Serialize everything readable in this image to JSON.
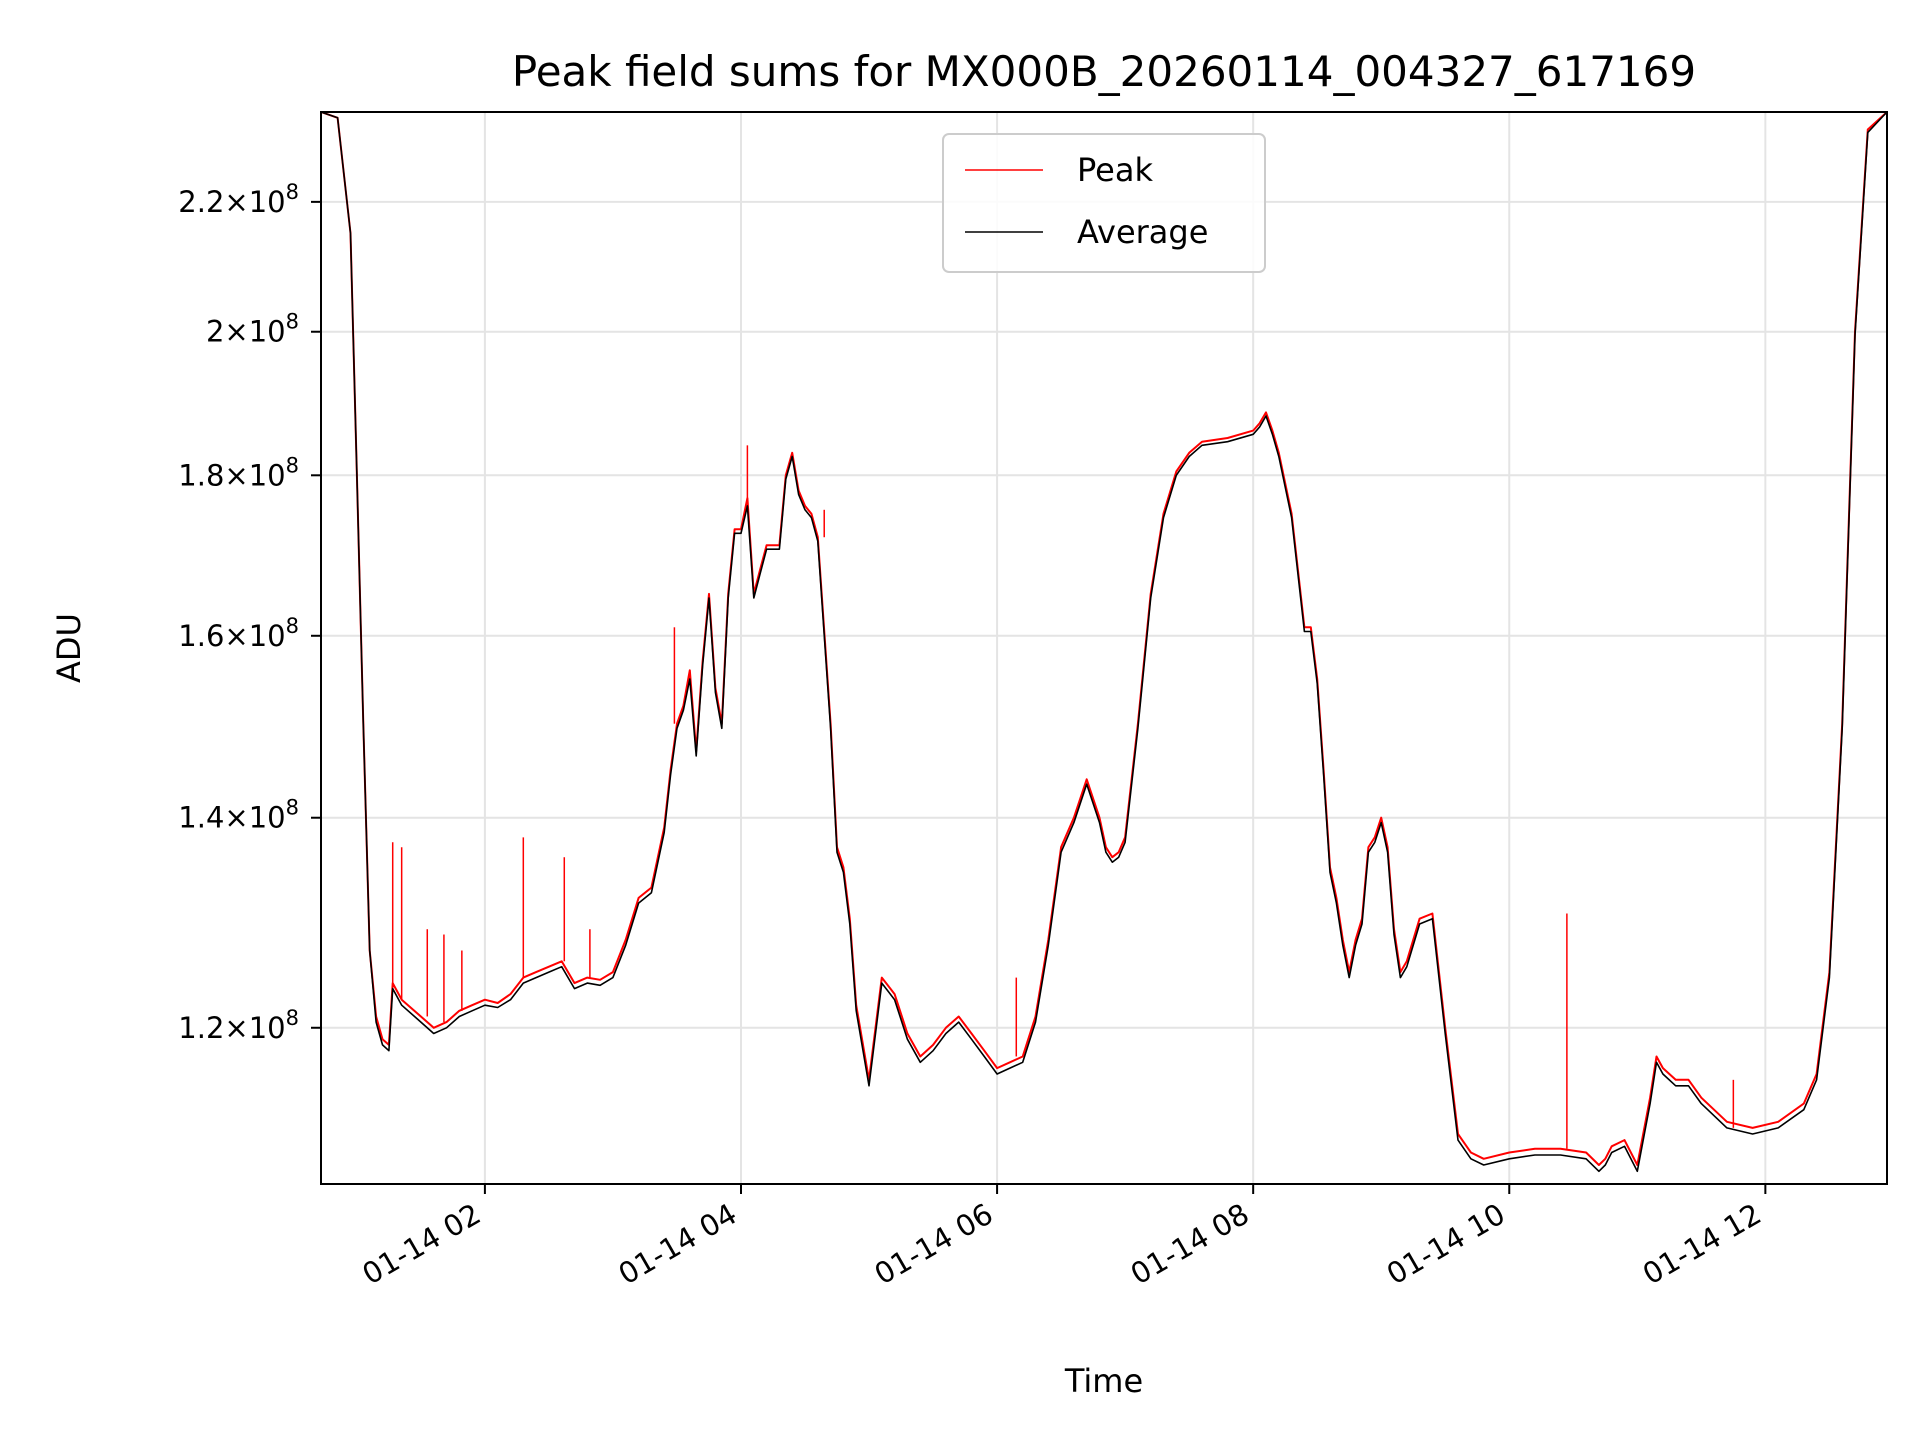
{
  "chart_data": {
    "type": "line",
    "title": "Peak field sums for MX000B_20260114_004327_617169",
    "xlabel": "Time",
    "ylabel": "ADU",
    "y_scale": "log",
    "ylim": [
      107000000,
      235000000
    ],
    "xlim_hours": [
      0.72,
      12.95
    ],
    "grid": true,
    "legend_position": "top-center",
    "x_ticks": [
      {
        "hour": 2,
        "label": "01-14 02"
      },
      {
        "hour": 4,
        "label": "01-14 04"
      },
      {
        "hour": 6,
        "label": "01-14 06"
      },
      {
        "hour": 8,
        "label": "01-14 08"
      },
      {
        "hour": 10,
        "label": "01-14 10"
      },
      {
        "hour": 12,
        "label": "01-14 12"
      }
    ],
    "y_ticks": [
      {
        "value": 120000000,
        "mantissa": "1.2",
        "exp": "8"
      },
      {
        "value": 140000000,
        "mantissa": "1.4",
        "exp": "8"
      },
      {
        "value": 160000000,
        "mantissa": "1.6",
        "exp": "8"
      },
      {
        "value": 180000000,
        "mantissa": "1.8",
        "exp": "8"
      },
      {
        "value": 200000000,
        "mantissa": "2",
        "exp": "8"
      },
      {
        "value": 220000000,
        "mantissa": "2.2",
        "exp": "8"
      }
    ],
    "times_label": "x values are hours after 01-14 00:00",
    "series": [
      {
        "name": "Peak",
        "color": "#ff0000",
        "x": [
          0.72,
          0.85,
          0.95,
          1.0,
          1.05,
          1.1,
          1.15,
          1.2,
          1.25,
          1.28,
          1.35,
          1.5,
          1.6,
          1.7,
          1.8,
          1.9,
          2.0,
          2.1,
          2.2,
          2.3,
          2.4,
          2.5,
          2.6,
          2.7,
          2.8,
          2.9,
          3.0,
          3.1,
          3.2,
          3.3,
          3.4,
          3.45,
          3.5,
          3.55,
          3.6,
          3.65,
          3.7,
          3.75,
          3.8,
          3.85,
          3.9,
          3.95,
          4.0,
          4.05,
          4.1,
          4.15,
          4.2,
          4.3,
          4.35,
          4.4,
          4.45,
          4.5,
          4.55,
          4.6,
          4.7,
          4.75,
          4.8,
          4.85,
          4.9,
          5.0,
          5.1,
          5.2,
          5.3,
          5.4,
          5.5,
          5.6,
          5.7,
          5.8,
          5.9,
          6.0,
          6.1,
          6.2,
          6.3,
          6.4,
          6.5,
          6.6,
          6.7,
          6.8,
          6.85,
          6.9,
          6.95,
          7.0,
          7.1,
          7.2,
          7.3,
          7.4,
          7.5,
          7.6,
          7.8,
          8.0,
          8.05,
          8.1,
          8.15,
          8.2,
          8.3,
          8.4,
          8.45,
          8.5,
          8.55,
          8.6,
          8.65,
          8.7,
          8.75,
          8.8,
          8.85,
          8.9,
          8.95,
          9.0,
          9.05,
          9.1,
          9.15,
          9.2,
          9.3,
          9.4,
          9.5,
          9.6,
          9.7,
          9.8,
          10.0,
          10.2,
          10.4,
          10.6,
          10.7,
          10.75,
          10.8,
          10.9,
          11.0,
          11.1,
          11.15,
          11.2,
          11.3,
          11.4,
          11.5,
          11.7,
          11.9,
          12.1,
          12.3,
          12.4,
          12.5,
          12.6,
          12.7,
          12.8,
          12.95
        ],
        "values": [
          235000000,
          234000000,
          215000000,
          180000000,
          150000000,
          127000000,
          121000000,
          119000000,
          118500000,
          124000000,
          122500000,
          121000000,
          120000000,
          120500000,
          121500000,
          122000000,
          122500000,
          122200000,
          123000000,
          124500000,
          125000000,
          125500000,
          126000000,
          124000000,
          124500000,
          124300000,
          125000000,
          128000000,
          132000000,
          133000000,
          139000000,
          145000000,
          150000000,
          152000000,
          156000000,
          147000000,
          157000000,
          165000000,
          154000000,
          150000000,
          165000000,
          173000000,
          173000000,
          177000000,
          165000000,
          168000000,
          171000000,
          171000000,
          180000000,
          183000000,
          178000000,
          176000000,
          175000000,
          172000000,
          150000000,
          137000000,
          135000000,
          130000000,
          122000000,
          115500000,
          124500000,
          123000000,
          119500000,
          117500000,
          118500000,
          120000000,
          121000000,
          119500000,
          118000000,
          116500000,
          117000000,
          117500000,
          121000000,
          128000000,
          137000000,
          140000000,
          144000000,
          140000000,
          137000000,
          136000000,
          136500000,
          138000000,
          150000000,
          165000000,
          175000000,
          180500000,
          183000000,
          184500000,
          185000000,
          186000000,
          187000000,
          188500000,
          186000000,
          183000000,
          175000000,
          161000000,
          161000000,
          155000000,
          145000000,
          135000000,
          132000000,
          128000000,
          125000000,
          128000000,
          130000000,
          137000000,
          138000000,
          140000000,
          137000000,
          129000000,
          125000000,
          126000000,
          130000000,
          130500000,
          120000000,
          111000000,
          109500000,
          109000000,
          109500000,
          109800000,
          109800000,
          109500000,
          108500000,
          109000000,
          110000000,
          110500000,
          108500000,
          114000000,
          117500000,
          116500000,
          115500000,
          115500000,
          114000000,
          112000000,
          111500000,
          112000000,
          113500000,
          116000000,
          125000000,
          150000000,
          200000000,
          232000000,
          235000000
        ]
      },
      {
        "name": "Average",
        "color": "#000000",
        "x": [
          0.72,
          0.85,
          0.95,
          1.0,
          1.05,
          1.1,
          1.15,
          1.2,
          1.25,
          1.28,
          1.35,
          1.5,
          1.6,
          1.7,
          1.8,
          1.9,
          2.0,
          2.1,
          2.2,
          2.3,
          2.4,
          2.5,
          2.6,
          2.7,
          2.8,
          2.9,
          3.0,
          3.1,
          3.2,
          3.3,
          3.4,
          3.45,
          3.5,
          3.55,
          3.6,
          3.65,
          3.7,
          3.75,
          3.8,
          3.85,
          3.9,
          3.95,
          4.0,
          4.05,
          4.1,
          4.15,
          4.2,
          4.3,
          4.35,
          4.4,
          4.45,
          4.5,
          4.55,
          4.6,
          4.7,
          4.75,
          4.8,
          4.85,
          4.9,
          5.0,
          5.1,
          5.2,
          5.3,
          5.4,
          5.5,
          5.6,
          5.7,
          5.8,
          5.9,
          6.0,
          6.1,
          6.2,
          6.3,
          6.4,
          6.5,
          6.6,
          6.7,
          6.8,
          6.85,
          6.9,
          6.95,
          7.0,
          7.1,
          7.2,
          7.3,
          7.4,
          7.5,
          7.6,
          7.8,
          8.0,
          8.05,
          8.1,
          8.15,
          8.2,
          8.3,
          8.4,
          8.45,
          8.5,
          8.55,
          8.6,
          8.65,
          8.7,
          8.75,
          8.8,
          8.85,
          8.9,
          8.95,
          9.0,
          9.05,
          9.1,
          9.15,
          9.2,
          9.3,
          9.4,
          9.5,
          9.6,
          9.7,
          9.8,
          10.0,
          10.2,
          10.4,
          10.6,
          10.7,
          10.75,
          10.8,
          10.9,
          11.0,
          11.1,
          11.15,
          11.2,
          11.3,
          11.4,
          11.5,
          11.7,
          11.9,
          12.1,
          12.3,
          12.4,
          12.5,
          12.6,
          12.7,
          12.8,
          12.95
        ],
        "values": [
          235000000,
          234000000,
          215000000,
          180000000,
          150000000,
          127000000,
          120500000,
          118500000,
          118000000,
          123500000,
          122000000,
          120500000,
          119500000,
          120000000,
          121000000,
          121500000,
          122000000,
          121800000,
          122500000,
          124000000,
          124500000,
          125000000,
          125500000,
          123500000,
          124000000,
          123800000,
          124500000,
          127500000,
          131500000,
          132500000,
          138500000,
          144500000,
          149500000,
          151500000,
          155000000,
          146500000,
          156500000,
          164500000,
          153500000,
          149500000,
          164500000,
          172500000,
          172500000,
          176000000,
          164500000,
          167500000,
          170500000,
          170500000,
          179500000,
          182500000,
          177500000,
          175500000,
          174500000,
          171500000,
          149500000,
          136500000,
          134500000,
          129500000,
          121500000,
          115000000,
          124000000,
          122500000,
          119000000,
          117000000,
          118000000,
          119500000,
          120500000,
          119000000,
          117500000,
          116000000,
          116500000,
          117000000,
          120500000,
          127500000,
          136500000,
          139500000,
          143500000,
          139500000,
          136500000,
          135500000,
          136000000,
          137500000,
          149500000,
          164500000,
          174500000,
          180000000,
          182500000,
          184000000,
          184500000,
          185500000,
          186500000,
          188000000,
          185500000,
          182500000,
          174500000,
          160500000,
          160500000,
          154500000,
          144500000,
          134500000,
          131500000,
          127500000,
          124500000,
          127500000,
          129500000,
          136500000,
          137500000,
          139500000,
          136500000,
          128500000,
          124500000,
          125500000,
          129500000,
          130000000,
          119500000,
          110500000,
          109000000,
          108500000,
          109000000,
          109300000,
          109300000,
          109000000,
          108000000,
          108500000,
          109500000,
          110000000,
          108000000,
          113500000,
          117000000,
          116000000,
          115000000,
          115000000,
          113500000,
          111500000,
          111000000,
          111500000,
          113000000,
          115500000,
          124500000,
          149500000,
          199500000,
          231500000,
          235000000
        ]
      }
    ],
    "spikes": [
      {
        "hour": 1.28,
        "base": 124000000,
        "top": 137500000
      },
      {
        "hour": 1.35,
        "base": 122500000,
        "top": 137000000
      },
      {
        "hour": 1.55,
        "base": 121000000,
        "top": 129000000
      },
      {
        "hour": 1.68,
        "base": 120500000,
        "top": 128500000
      },
      {
        "hour": 1.82,
        "base": 121500000,
        "top": 127000000
      },
      {
        "hour": 2.3,
        "base": 124500000,
        "top": 138000000
      },
      {
        "hour": 2.62,
        "base": 126000000,
        "top": 136000000
      },
      {
        "hour": 2.82,
        "base": 124500000,
        "top": 129000000
      },
      {
        "hour": 3.48,
        "base": 150000000,
        "top": 161000000
      },
      {
        "hour": 4.05,
        "base": 177000000,
        "top": 184000000
      },
      {
        "hour": 4.65,
        "base": 172000000,
        "top": 175500000
      },
      {
        "hour": 6.15,
        "base": 117500000,
        "top": 124500000
      },
      {
        "hour": 10.45,
        "base": 109800000,
        "top": 130500000
      },
      {
        "hour": 11.75,
        "base": 111500000,
        "top": 115500000
      }
    ]
  }
}
